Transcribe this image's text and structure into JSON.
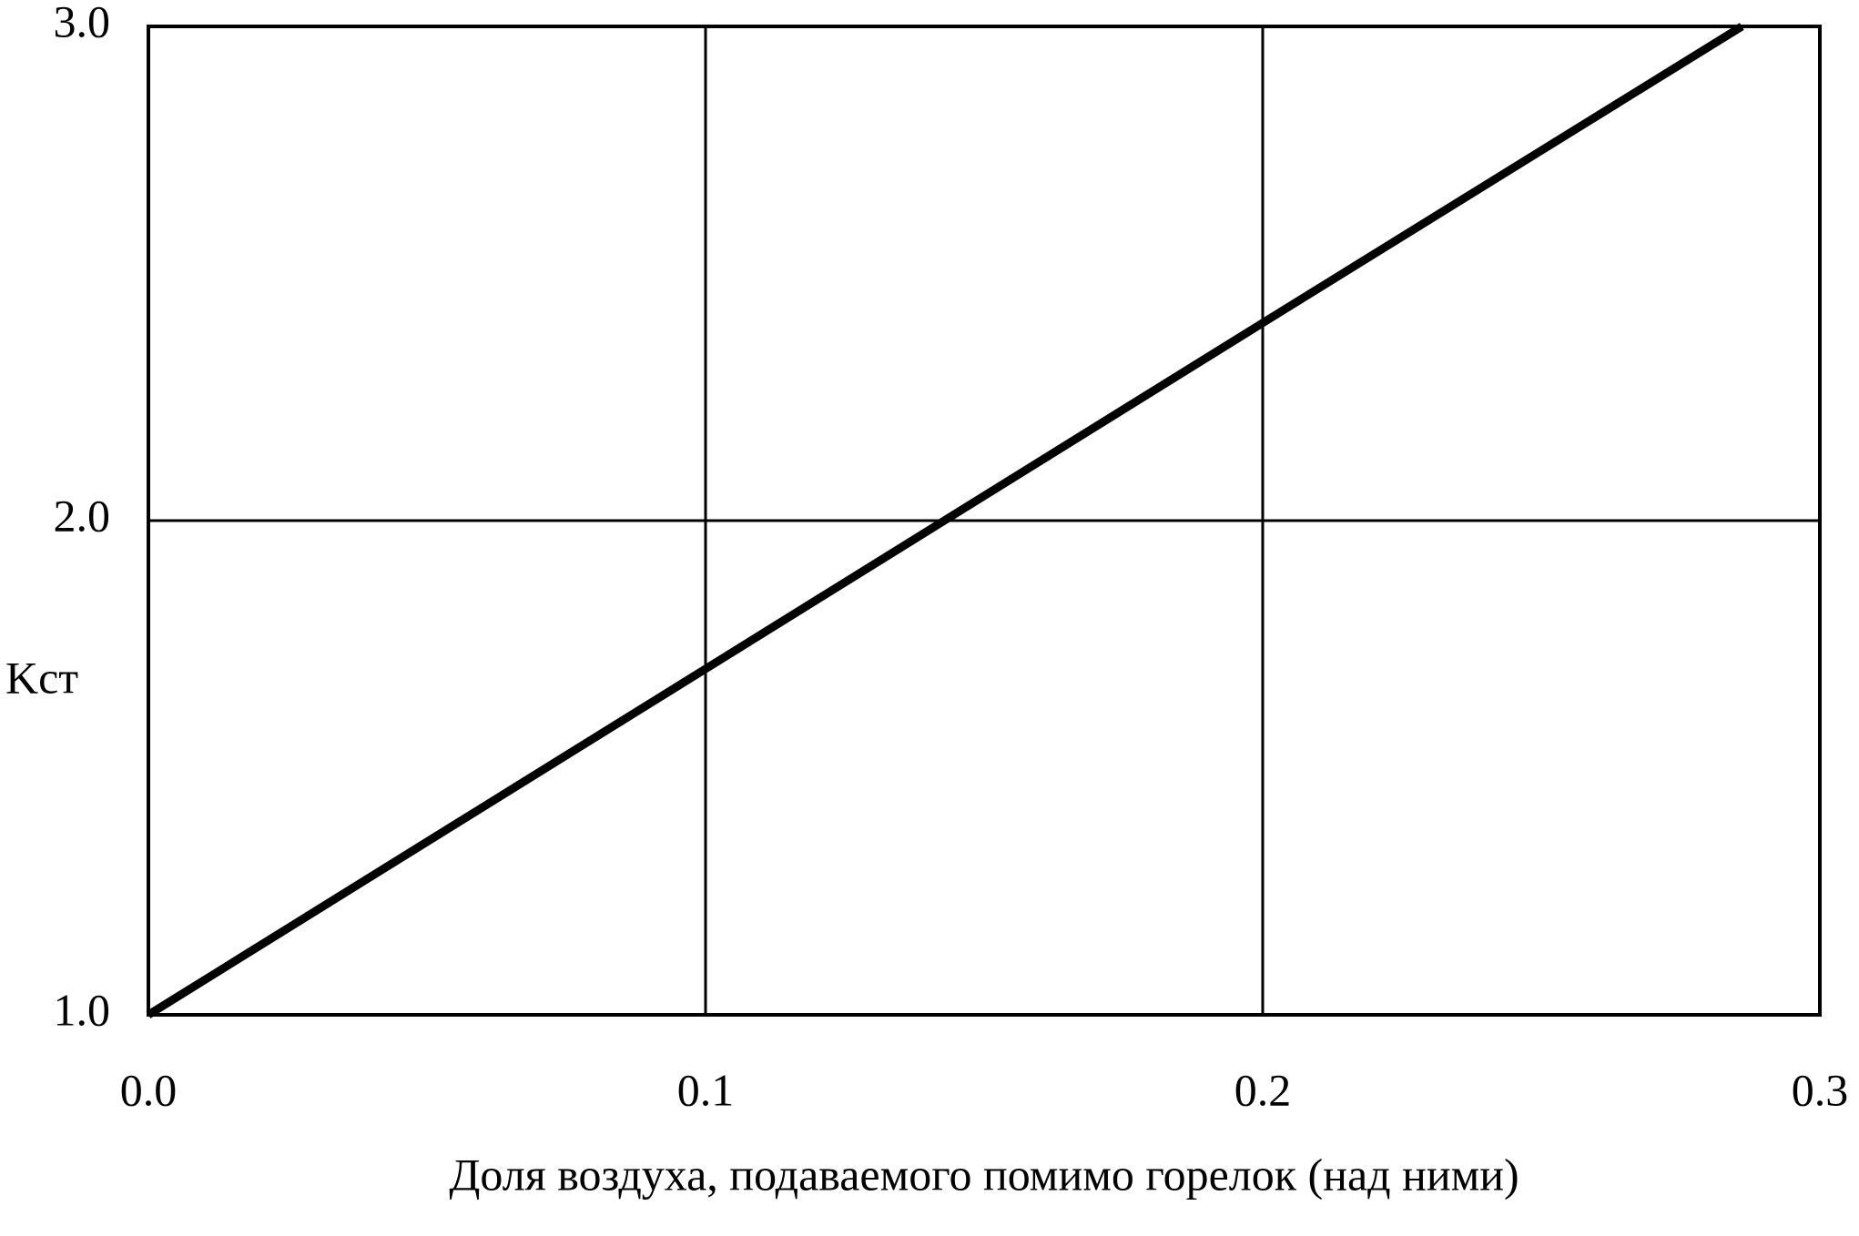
{
  "chart_data": {
    "type": "line",
    "xlabel": "Доля воздуха, подаваемого помимо горелок (над ними)",
    "ylabel": "Kст",
    "x": [
      0,
      0.1,
      0.2,
      0.286
    ],
    "series": [
      {
        "color": "#000000",
        "values": [
          1.0,
          1.7,
          2.4,
          3.0
        ]
      }
    ],
    "xlim": [
      0,
      0.3
    ],
    "ylim": [
      1,
      3
    ],
    "xticks": [
      {
        "value": 0,
        "label": "0.0"
      },
      0.1,
      0.2,
      0.3
    ],
    "yticks": [
      {
        "value": 1,
        "label": "1.0"
      },
      {
        "value": 2,
        "label": "2.0"
      },
      {
        "value": 3,
        "label": "3.0"
      }
    ],
    "grid": true
  }
}
